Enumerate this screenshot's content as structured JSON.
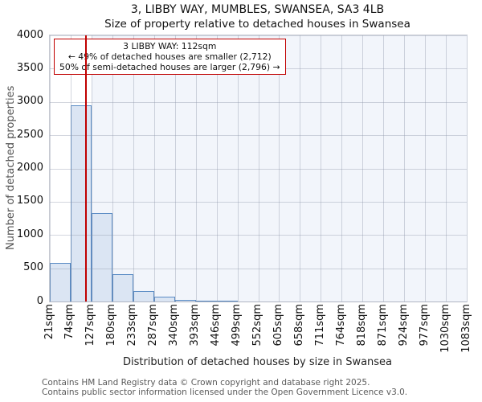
{
  "title": "3, LIBBY WAY, MUMBLES, SWANSEA, SA3 4LB",
  "subtitle": "Size of property relative to detached houses in Swansea",
  "annotation": {
    "line1": "3 LIBBY WAY: 112sqm",
    "line2": "← 49% of detached houses are smaller (2,712)",
    "line3": "50% of semi-detached houses are larger (2,796) →"
  },
  "chart_data": {
    "type": "bar",
    "title": "3, LIBBY WAY, MUMBLES, SWANSEA, SA3 4LB — Size of property relative to detached houses in Swansea",
    "xlabel": "Distribution of detached houses by size in Swansea",
    "ylabel": "Number of detached properties",
    "x_tick_labels": [
      "21sqm",
      "74sqm",
      "127sqm",
      "180sqm",
      "233sqm",
      "287sqm",
      "340sqm",
      "393sqm",
      "446sqm",
      "499sqm",
      "552sqm",
      "605sqm",
      "658sqm",
      "711sqm",
      "764sqm",
      "818sqm",
      "871sqm",
      "924sqm",
      "977sqm",
      "1030sqm",
      "1083sqm"
    ],
    "bin_start_sqm": 21,
    "bin_width_sqm": 53,
    "values": [
      580,
      2950,
      1330,
      410,
      155,
      70,
      25,
      10,
      10,
      0,
      0,
      0,
      0,
      0,
      0,
      0,
      0,
      0,
      0,
      0
    ],
    "ylim": [
      0,
      4000
    ],
    "ytick_step": 500,
    "grid": true,
    "legend": "none",
    "marker_value_sqm": 112,
    "shade_from_sqm": 127,
    "shade_to_sqm": 1083
  },
  "colors": {
    "bar_fill": "#dbe5f3",
    "bar_edge": "#5a8bc4",
    "marker_line": "#c00000",
    "annotation_border": "#c00000",
    "shade_background": "#f2f5fb",
    "gridline": "#8c93a8"
  },
  "footer": {
    "line1": "Contains HM Land Registry data © Crown copyright and database right 2025.",
    "line2": "Contains public sector information licensed under the Open Government Licence v3.0."
  }
}
